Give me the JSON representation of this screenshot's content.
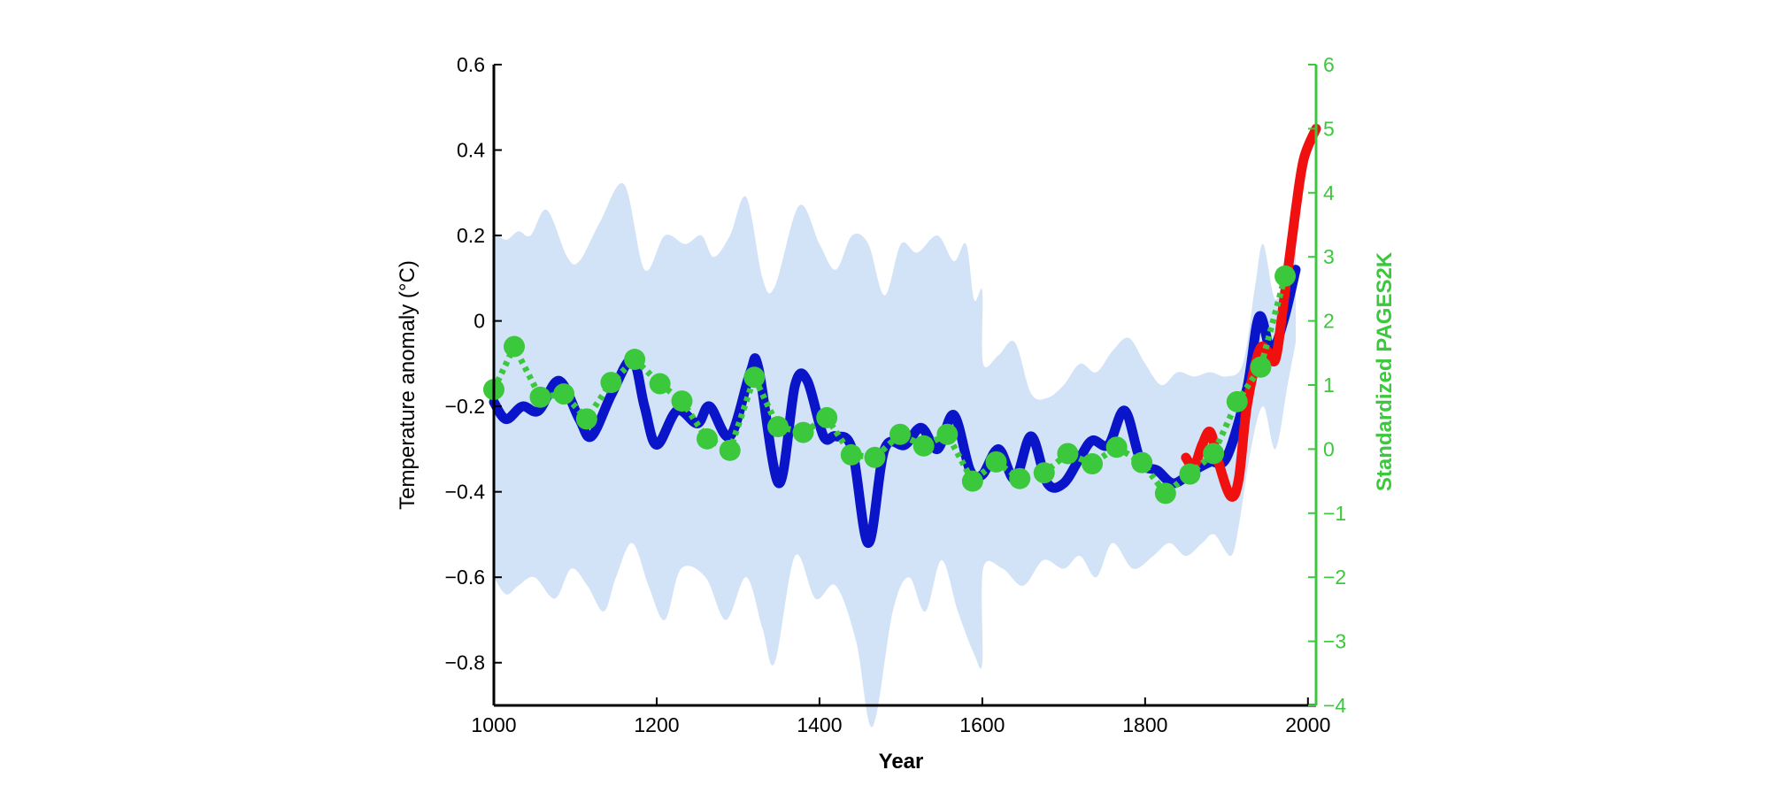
{
  "chart_data": {
    "type": "line",
    "title": "",
    "xlabel": "Year",
    "ylabel_left": "Temperature anomaly (°C)",
    "ylabel_right": "Standardized PAGES2K",
    "xlim": [
      1000,
      2010
    ],
    "ylim_left": [
      -0.9,
      0.6
    ],
    "ylim_right": [
      -4,
      6
    ],
    "x_ticks": [
      1000,
      1200,
      1400,
      1600,
      1800,
      2000
    ],
    "y_ticks_left": [
      "0.6",
      "0.4",
      "0.2",
      "0",
      "-0.2",
      "-0.4",
      "-0.6",
      "-0.8"
    ],
    "y_ticks_right": [
      "6",
      "5",
      "4",
      "3",
      "2",
      "1",
      "0",
      "-1",
      "-2",
      "-3",
      "-4"
    ],
    "grid": false,
    "colors": {
      "band": "#d3e3f7",
      "reconstruction": "#0a14c8",
      "instrumental": "#f01010",
      "pages2k": "#3cc83c",
      "axis_left": "#000000",
      "axis_right": "#3cc83c"
    },
    "uncertainty_band": {
      "axis": "left",
      "upper": [
        [
          1000,
          0.21
        ],
        [
          1015,
          0.19
        ],
        [
          1030,
          0.21
        ],
        [
          1045,
          0.2
        ],
        [
          1065,
          0.26
        ],
        [
          1090,
          0.15
        ],
        [
          1105,
          0.14
        ],
        [
          1130,
          0.23
        ],
        [
          1160,
          0.32
        ],
        [
          1185,
          0.12
        ],
        [
          1210,
          0.2
        ],
        [
          1235,
          0.18
        ],
        [
          1255,
          0.2
        ],
        [
          1270,
          0.15
        ],
        [
          1290,
          0.2
        ],
        [
          1310,
          0.29
        ],
        [
          1330,
          0.1
        ],
        [
          1345,
          0.08
        ],
        [
          1375,
          0.27
        ],
        [
          1400,
          0.18
        ],
        [
          1420,
          0.12
        ],
        [
          1440,
          0.2
        ],
        [
          1460,
          0.18
        ],
        [
          1480,
          0.06
        ],
        [
          1500,
          0.18
        ],
        [
          1520,
          0.16
        ],
        [
          1545,
          0.2
        ],
        [
          1565,
          0.14
        ],
        [
          1580,
          0.18
        ],
        [
          1590,
          0.05
        ],
        [
          1600,
          0.07
        ],
        [
          1601,
          -0.1
        ],
        [
          1620,
          -0.08
        ],
        [
          1640,
          -0.05
        ],
        [
          1660,
          -0.17
        ],
        [
          1680,
          -0.18
        ],
        [
          1700,
          -0.15
        ],
        [
          1720,
          -0.1
        ],
        [
          1740,
          -0.12
        ],
        [
          1760,
          -0.07
        ],
        [
          1780,
          -0.04
        ],
        [
          1800,
          -0.1
        ],
        [
          1820,
          -0.15
        ],
        [
          1840,
          -0.12
        ],
        [
          1860,
          -0.13
        ],
        [
          1880,
          -0.12
        ],
        [
          1900,
          -0.13
        ],
        [
          1920,
          -0.1
        ],
        [
          1935,
          0.08
        ],
        [
          1945,
          0.18
        ],
        [
          1960,
          0.05
        ],
        [
          1975,
          0.15
        ],
        [
          1985,
          0.22
        ]
      ],
      "lower": [
        [
          1000,
          -0.6
        ],
        [
          1015,
          -0.64
        ],
        [
          1030,
          -0.62
        ],
        [
          1050,
          -0.6
        ],
        [
          1075,
          -0.65
        ],
        [
          1095,
          -0.58
        ],
        [
          1115,
          -0.62
        ],
        [
          1135,
          -0.68
        ],
        [
          1150,
          -0.6
        ],
        [
          1170,
          -0.52
        ],
        [
          1190,
          -0.62
        ],
        [
          1210,
          -0.7
        ],
        [
          1230,
          -0.58
        ],
        [
          1260,
          -0.6
        ],
        [
          1285,
          -0.7
        ],
        [
          1310,
          -0.6
        ],
        [
          1330,
          -0.72
        ],
        [
          1345,
          -0.8
        ],
        [
          1370,
          -0.55
        ],
        [
          1395,
          -0.65
        ],
        [
          1420,
          -0.62
        ],
        [
          1445,
          -0.75
        ],
        [
          1465,
          -0.95
        ],
        [
          1490,
          -0.68
        ],
        [
          1510,
          -0.6
        ],
        [
          1530,
          -0.68
        ],
        [
          1550,
          -0.56
        ],
        [
          1570,
          -0.68
        ],
        [
          1590,
          -0.78
        ],
        [
          1600,
          -0.8
        ],
        [
          1601,
          -0.58
        ],
        [
          1625,
          -0.58
        ],
        [
          1650,
          -0.62
        ],
        [
          1675,
          -0.56
        ],
        [
          1700,
          -0.58
        ],
        [
          1720,
          -0.55
        ],
        [
          1740,
          -0.6
        ],
        [
          1760,
          -0.52
        ],
        [
          1785,
          -0.58
        ],
        [
          1810,
          -0.55
        ],
        [
          1830,
          -0.52
        ],
        [
          1850,
          -0.55
        ],
        [
          1870,
          -0.52
        ],
        [
          1885,
          -0.5
        ],
        [
          1905,
          -0.55
        ],
        [
          1915,
          -0.48
        ],
        [
          1930,
          -0.3
        ],
        [
          1945,
          -0.2
        ],
        [
          1960,
          -0.3
        ],
        [
          1975,
          -0.15
        ],
        [
          1985,
          -0.05
        ]
      ]
    },
    "series": [
      {
        "id": "reconstruction",
        "axis": "left",
        "style": "solid",
        "points": [
          [
            1000,
            -0.19
          ],
          [
            1015,
            -0.23
          ],
          [
            1035,
            -0.2
          ],
          [
            1055,
            -0.21
          ],
          [
            1080,
            -0.14
          ],
          [
            1105,
            -0.23
          ],
          [
            1120,
            -0.27
          ],
          [
            1145,
            -0.17
          ],
          [
            1170,
            -0.09
          ],
          [
            1185,
            -0.2
          ],
          [
            1200,
            -0.29
          ],
          [
            1225,
            -0.21
          ],
          [
            1250,
            -0.24
          ],
          [
            1265,
            -0.2
          ],
          [
            1290,
            -0.27
          ],
          [
            1315,
            -0.12
          ],
          [
            1325,
            -0.11
          ],
          [
            1350,
            -0.38
          ],
          [
            1370,
            -0.15
          ],
          [
            1385,
            -0.14
          ],
          [
            1405,
            -0.27
          ],
          [
            1420,
            -0.27
          ],
          [
            1440,
            -0.3
          ],
          [
            1460,
            -0.52
          ],
          [
            1480,
            -0.3
          ],
          [
            1505,
            -0.29
          ],
          [
            1525,
            -0.25
          ],
          [
            1545,
            -0.3
          ],
          [
            1565,
            -0.22
          ],
          [
            1585,
            -0.35
          ],
          [
            1600,
            -0.36
          ],
          [
            1620,
            -0.3
          ],
          [
            1640,
            -0.37
          ],
          [
            1660,
            -0.27
          ],
          [
            1680,
            -0.38
          ],
          [
            1700,
            -0.38
          ],
          [
            1720,
            -0.32
          ],
          [
            1735,
            -0.28
          ],
          [
            1755,
            -0.29
          ],
          [
            1775,
            -0.21
          ],
          [
            1795,
            -0.33
          ],
          [
            1815,
            -0.35
          ],
          [
            1835,
            -0.38
          ],
          [
            1860,
            -0.35
          ],
          [
            1880,
            -0.33
          ],
          [
            1900,
            -0.32
          ],
          [
            1925,
            -0.16
          ],
          [
            1940,
            0.01
          ],
          [
            1955,
            -0.07
          ],
          [
            1970,
            0.0
          ],
          [
            1985,
            0.12
          ]
        ]
      },
      {
        "id": "instrumental",
        "axis": "left",
        "style": "solid",
        "points": [
          [
            1850,
            -0.32
          ],
          [
            1860,
            -0.34
          ],
          [
            1870,
            -0.29
          ],
          [
            1880,
            -0.26
          ],
          [
            1890,
            -0.33
          ],
          [
            1905,
            -0.41
          ],
          [
            1915,
            -0.37
          ],
          [
            1925,
            -0.2
          ],
          [
            1940,
            -0.07
          ],
          [
            1950,
            -0.07
          ],
          [
            1960,
            -0.09
          ],
          [
            1970,
            0.04
          ],
          [
            1985,
            0.26
          ],
          [
            1995,
            0.38
          ],
          [
            2010,
            0.45
          ]
        ]
      },
      {
        "id": "pages2k",
        "axis": "right",
        "style": "dotted-markers",
        "points": [
          [
            1000,
            0.93
          ],
          [
            1025,
            1.6
          ],
          [
            1057,
            0.81
          ],
          [
            1086,
            0.86
          ],
          [
            1114,
            0.47
          ],
          [
            1144,
            1.04
          ],
          [
            1173,
            1.4
          ],
          [
            1204,
            1.02
          ],
          [
            1231,
            0.75
          ],
          [
            1262,
            0.16
          ],
          [
            1290,
            -0.02
          ],
          [
            1320,
            1.12
          ],
          [
            1349,
            0.35
          ],
          [
            1380,
            0.26
          ],
          [
            1409,
            0.49
          ],
          [
            1439,
            -0.09
          ],
          [
            1468,
            -0.13
          ],
          [
            1499,
            0.23
          ],
          [
            1528,
            0.05
          ],
          [
            1557,
            0.23
          ],
          [
            1588,
            -0.5
          ],
          [
            1617,
            -0.2
          ],
          [
            1646,
            -0.46
          ],
          [
            1676,
            -0.37
          ],
          [
            1705,
            -0.07
          ],
          [
            1735,
            -0.23
          ],
          [
            1765,
            0.03
          ],
          [
            1796,
            -0.21
          ],
          [
            1825,
            -0.69
          ],
          [
            1855,
            -0.39
          ],
          [
            1884,
            -0.07
          ],
          [
            1913,
            0.74
          ],
          [
            1942,
            1.28
          ],
          [
            1972,
            2.7
          ]
        ]
      }
    ]
  }
}
